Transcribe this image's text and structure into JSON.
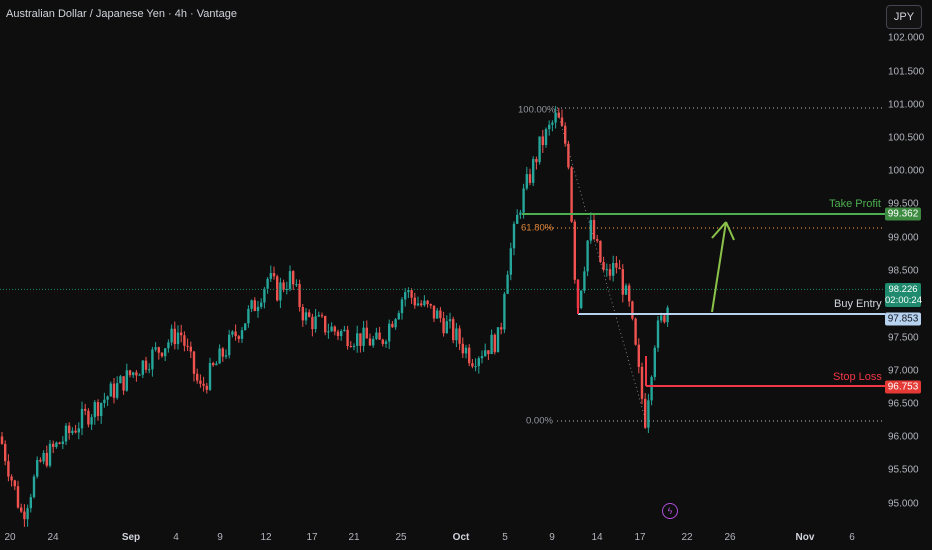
{
  "header": {
    "title": "Australian Dollar / Japanese Yen · 4h · Vantage",
    "currency": "JPY"
  },
  "y_axis": [
    "102.000",
    "101.500",
    "101.000",
    "100.500",
    "100.000",
    "99.500",
    "99.000",
    "98.500",
    "97.500",
    "97.000",
    "96.500",
    "96.000",
    "95.500",
    "95.000"
  ],
  "x_axis": [
    "20",
    "24",
    "Sep",
    "4",
    "9",
    "12",
    "17",
    "21",
    "25",
    "Oct",
    "5",
    "9",
    "14",
    "17",
    "22",
    "26",
    "Nov",
    "6"
  ],
  "fib": {
    "top": "100.00%",
    "mid": "61.80%",
    "bottom": "0.00%"
  },
  "levels": {
    "take_profit": {
      "label": "Take Profit",
      "price": "99.362",
      "color": "#4caf50"
    },
    "buy_entry": {
      "label": "Buy Entry",
      "price": "97.853",
      "color": "#b7d3f0"
    },
    "stop_loss": {
      "label": "Stop Loss",
      "price": "96.753",
      "color": "#f23645"
    }
  },
  "current": {
    "price": "98.226",
    "countdown": "02:00:24"
  },
  "colors": {
    "up": "#26a69a",
    "down": "#ef5350",
    "background": "#0e0e0e"
  },
  "chart_data": {
    "type": "candlestick",
    "symbol": "AUDJPY",
    "timeframe": "4h",
    "ylim": [
      94.7,
      102.3
    ],
    "price_path": [
      [
        "Aug 20",
        96.0
      ],
      [
        "Aug 22",
        94.8
      ],
      [
        "Aug 24",
        95.6
      ],
      [
        "Aug 28",
        96.3
      ],
      [
        "Sep 1",
        97.0
      ],
      [
        "Sep 4",
        97.6
      ],
      [
        "Sep 6",
        96.7
      ],
      [
        "Sep 9",
        97.3
      ],
      [
        "Sep 11",
        98.0
      ],
      [
        "Sep 12",
        98.4
      ],
      [
        "Sep 13",
        98.2
      ],
      [
        "Sep 16",
        98.4
      ],
      [
        "Sep 18",
        97.8
      ],
      [
        "Sep 21",
        97.6
      ],
      [
        "Sep 23",
        97.4
      ],
      [
        "Sep 26",
        98.2
      ],
      [
        "Sep 27",
        98.0
      ],
      [
        "Sep 30",
        97.8
      ],
      [
        "Oct 2",
        97.2
      ],
      [
        "Oct 4",
        97.5
      ],
      [
        "Oct 5",
        98.4
      ],
      [
        "Oct 7",
        99.5
      ],
      [
        "Oct 8",
        100.4
      ],
      [
        "Oct 9",
        100.85
      ],
      [
        "Oct 10",
        100.3
      ],
      [
        "Oct 11",
        97.9
      ],
      [
        "Oct 13",
        99.2
      ],
      [
        "Oct 14",
        98.4
      ],
      [
        "Oct 15",
        98.6
      ],
      [
        "Oct 16",
        97.9
      ],
      [
        "Oct 17",
        96.25
      ],
      [
        "Oct 18",
        97.5
      ],
      [
        "Oct 19",
        98.0
      ],
      [
        "Oct 20",
        98.226
      ]
    ],
    "fib_levels": [
      {
        "label": "100.00%",
        "price": 100.92
      },
      {
        "label": "61.80%",
        "price": 99.16
      },
      {
        "label": "0.00%",
        "price": 96.25
      }
    ],
    "levels": [
      {
        "name": "Take Profit",
        "price": 99.362
      },
      {
        "name": "Buy Entry",
        "price": 97.853
      },
      {
        "name": "Stop Loss",
        "price": 96.753
      }
    ],
    "current_price": 98.226
  }
}
